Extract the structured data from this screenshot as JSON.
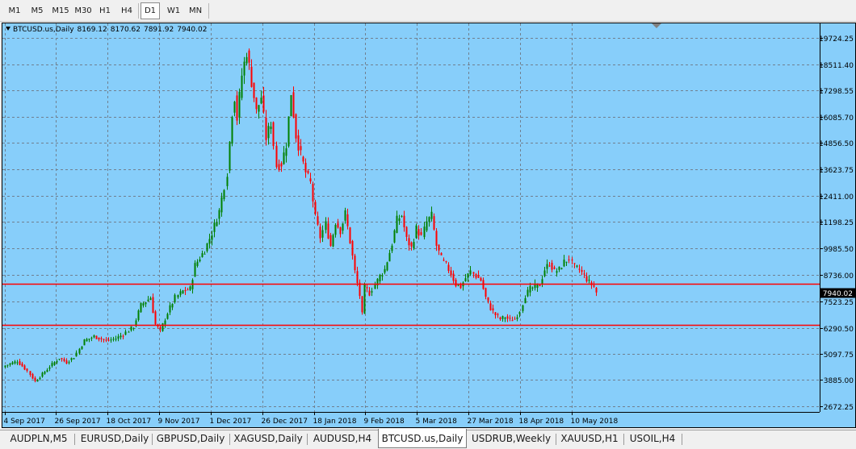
{
  "timeframes": {
    "items": [
      "M1",
      "M5",
      "M15",
      "M30",
      "H1",
      "H4",
      "D1",
      "W1",
      "MN"
    ],
    "active": "D1"
  },
  "chart_header": {
    "symbol": "BTCUSD.us,Daily",
    "open": "8169.12",
    "high": "8170.62",
    "low": "7891.92",
    "close": "7940.02"
  },
  "chart_data": {
    "type": "candlestick",
    "symbol": "BTCUSD.us",
    "timeframe": "Daily",
    "y_ticks": [
      "19724.25",
      "18511.40",
      "17298.55",
      "16085.70",
      "14856.50",
      "13623.75",
      "12411.00",
      "11198.25",
      "9985.50",
      "8736.00",
      "7523.25",
      "6290.50",
      "5097.75",
      "3885.00",
      "2672.25"
    ],
    "x_ticks": [
      "4 Sep 2017",
      "26 Sep 2017",
      "18 Oct 2017",
      "9 Nov 2017",
      "1 Dec 2017",
      "26 Dec 2017",
      "18 Jan 2018",
      "9 Feb 2018",
      "5 Mar 2018",
      "27 Mar 2018",
      "18 Apr 2018",
      "10 May 2018"
    ],
    "ylim": [
      2400,
      20400
    ],
    "grid": true,
    "horizontal_lines": [
      {
        "price": 8342.49,
        "label": "8342.49",
        "color": "#ff0000"
      },
      {
        "price": 6418.0,
        "label": "6418.00",
        "color": "#ff0000"
      }
    ],
    "current_price": {
      "price": 7940.02,
      "label": "7940.02"
    },
    "anchors": [
      [
        0,
        4550
      ],
      [
        5,
        4750
      ],
      [
        9,
        4300
      ],
      [
        12,
        3820
      ],
      [
        15,
        4150
      ],
      [
        18,
        4500
      ],
      [
        22,
        4900
      ],
      [
        25,
        4700
      ],
      [
        28,
        4950
      ],
      [
        32,
        5700
      ],
      [
        36,
        5900
      ],
      [
        41,
        5700
      ],
      [
        45,
        5800
      ],
      [
        48,
        6000
      ],
      [
        52,
        6350
      ],
      [
        55,
        7350
      ],
      [
        59,
        7700
      ],
      [
        61,
        6450
      ],
      [
        63,
        6150
      ],
      [
        66,
        7000
      ],
      [
        69,
        7700
      ],
      [
        72,
        8000
      ],
      [
        75,
        8100
      ],
      [
        77,
        9200
      ],
      [
        81,
        9900
      ],
      [
        84,
        10700
      ],
      [
        87,
        11700
      ],
      [
        90,
        13500
      ],
      [
        92,
        16300
      ],
      [
        93,
        17000
      ],
      [
        94,
        16000
      ],
      [
        96,
        18000
      ],
      [
        98,
        19100
      ],
      [
        100,
        17700
      ],
      [
        102,
        16300
      ],
      [
        104,
        17000
      ],
      [
        106,
        15100
      ],
      [
        108,
        15800
      ],
      [
        110,
        13800
      ],
      [
        112,
        13900
      ],
      [
        114,
        14800
      ],
      [
        116,
        17200
      ],
      [
        118,
        15200
      ],
      [
        120,
        14300
      ],
      [
        122,
        13500
      ],
      [
        124,
        13000
      ],
      [
        126,
        11400
      ],
      [
        128,
        10500
      ],
      [
        130,
        11100
      ],
      [
        132,
        10100
      ],
      [
        134,
        11200
      ],
      [
        136,
        10800
      ],
      [
        138,
        11600
      ],
      [
        140,
        10300
      ],
      [
        142,
        8900
      ],
      [
        144,
        7800
      ],
      [
        145,
        6900
      ],
      [
        146,
        8200
      ],
      [
        148,
        7900
      ],
      [
        150,
        8300
      ],
      [
        152,
        8700
      ],
      [
        154,
        9000
      ],
      [
        157,
        10200
      ],
      [
        159,
        11300
      ],
      [
        161,
        11500
      ],
      [
        163,
        10400
      ],
      [
        165,
        10000
      ],
      [
        167,
        10900
      ],
      [
        169,
        10500
      ],
      [
        171,
        11200
      ],
      [
        173,
        11500
      ],
      [
        175,
        10100
      ],
      [
        177,
        9500
      ],
      [
        179,
        9200
      ],
      [
        181,
        8800
      ],
      [
        183,
        8300
      ],
      [
        185,
        8200
      ],
      [
        187,
        8600
      ],
      [
        189,
        8900
      ],
      [
        191,
        8700
      ],
      [
        193,
        8500
      ],
      [
        195,
        7700
      ],
      [
        197,
        7200
      ],
      [
        199,
        6900
      ],
      [
        201,
        6700
      ],
      [
        203,
        6800
      ],
      [
        205,
        6650
      ],
      [
        207,
        6700
      ],
      [
        209,
        7100
      ],
      [
        211,
        7800
      ],
      [
        213,
        8100
      ],
      [
        215,
        8200
      ],
      [
        217,
        8300
      ],
      [
        219,
        9000
      ],
      [
        221,
        9300
      ],
      [
        223,
        8900
      ],
      [
        225,
        9000
      ],
      [
        227,
        9350
      ],
      [
        229,
        9500
      ],
      [
        231,
        9100
      ],
      [
        233,
        9000
      ],
      [
        235,
        8700
      ],
      [
        237,
        8400
      ],
      [
        239,
        8200
      ],
      [
        240,
        7940
      ]
    ]
  },
  "tabs": {
    "items": [
      "AUDPLN,M5",
      "EURUSD,Daily",
      "GBPUSD,Daily",
      "XAGUSD,Daily",
      "AUDUSD,H4",
      "BTCUSD.us,Daily",
      "USDRUB,Weekly",
      "XAUUSD,H1",
      "USOIL,H4"
    ],
    "active": "BTCUSD.us,Daily"
  },
  "colors": {
    "background": "#87cefa",
    "bull_candle": "#008000",
    "bear_candle": "#ff0000",
    "grid": "#708090",
    "hline": "#ff0000"
  }
}
